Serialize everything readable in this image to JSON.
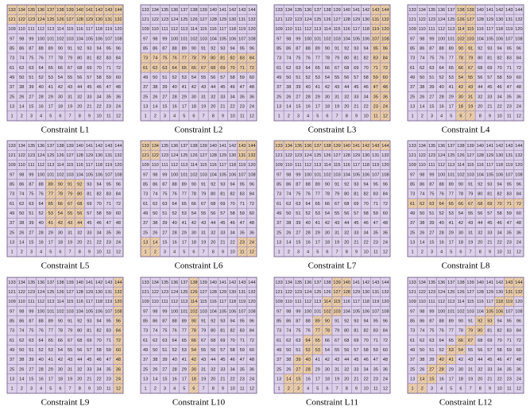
{
  "grid": [
    [
      133,
      134,
      135,
      136,
      137,
      138,
      139,
      140,
      141,
      142,
      143,
      144
    ],
    [
      121,
      122,
      123,
      124,
      125,
      126,
      127,
      128,
      129,
      130,
      131,
      132
    ],
    [
      109,
      110,
      111,
      112,
      113,
      114,
      115,
      116,
      117,
      118,
      119,
      120
    ],
    [
      97,
      98,
      99,
      100,
      101,
      102,
      103,
      104,
      105,
      106,
      107,
      108
    ],
    [
      85,
      86,
      87,
      88,
      89,
      90,
      91,
      92,
      93,
      94,
      95,
      96
    ],
    [
      73,
      74,
      75,
      76,
      77,
      78,
      79,
      80,
      81,
      82,
      83,
      84
    ],
    [
      61,
      62,
      63,
      64,
      65,
      66,
      67,
      68,
      69,
      70,
      71,
      72
    ],
    [
      49,
      50,
      51,
      52,
      53,
      54,
      55,
      56,
      57,
      58,
      59,
      60
    ],
    [
      37,
      38,
      39,
      40,
      41,
      42,
      43,
      44,
      45,
      46,
      47,
      48
    ],
    [
      25,
      26,
      27,
      28,
      29,
      30,
      31,
      32,
      33,
      34,
      35,
      36
    ],
    [
      13,
      14,
      15,
      16,
      17,
      18,
      19,
      20,
      21,
      22,
      23,
      24
    ],
    [
      1,
      2,
      3,
      4,
      5,
      6,
      7,
      8,
      9,
      10,
      11,
      12
    ]
  ],
  "panels": [
    {
      "caption": "Constraint L1",
      "highlight": [
        121,
        122,
        123,
        124,
        125,
        126,
        127,
        128,
        129,
        130,
        131,
        132,
        133,
        134,
        135,
        136,
        137,
        138,
        139,
        140,
        141,
        142,
        143,
        144
      ]
    },
    {
      "caption": "Constraint L2",
      "highlight": [
        61,
        62,
        63,
        64,
        65,
        66,
        67,
        68,
        69,
        70,
        71,
        72,
        73,
        74,
        75,
        76,
        77,
        78,
        79,
        80,
        81,
        82,
        83,
        84
      ]
    },
    {
      "caption": "Constraint L3",
      "highlight": [
        11,
        12,
        23,
        24,
        35,
        36,
        47,
        48,
        59,
        60,
        71,
        72,
        83,
        84,
        95,
        96,
        107,
        108,
        119,
        120,
        131,
        132,
        143,
        144
      ]
    },
    {
      "caption": "Constraint L4",
      "highlight": [
        6,
        7,
        18,
        19,
        30,
        31,
        42,
        43,
        54,
        55,
        66,
        67,
        78,
        79,
        90,
        91,
        102,
        103,
        114,
        115,
        126,
        127,
        138,
        139
      ]
    },
    {
      "caption": "Constraint L5",
      "highlight": [
        89,
        90,
        91,
        92,
        77,
        78,
        79,
        80,
        65,
        66,
        67,
        68,
        53,
        54,
        55,
        56,
        41,
        42,
        43,
        44
      ]
    },
    {
      "caption": "Constraint L6",
      "highlight": [
        133,
        134,
        121,
        122,
        143,
        144,
        131,
        132,
        13,
        14,
        1,
        2,
        23,
        24,
        11,
        12
      ]
    },
    {
      "caption": "Constraint L7",
      "highlight": [
        133,
        134,
        135,
        136,
        137,
        138,
        139,
        140,
        141,
        142,
        143,
        144
      ]
    },
    {
      "caption": "Constraint L8",
      "highlight": [
        61,
        62,
        63,
        64,
        65,
        66,
        67,
        68,
        69,
        70,
        71,
        72
      ]
    },
    {
      "caption": "Constraint L9",
      "highlight": [
        12,
        24,
        36,
        48,
        60,
        72,
        84,
        96,
        108,
        120,
        132,
        144
      ]
    },
    {
      "caption": "Constraint L10",
      "highlight": [
        6,
        18,
        30,
        42,
        54,
        66,
        78,
        90,
        102,
        114,
        126,
        138
      ]
    },
    {
      "caption": "Constraint L11",
      "highlight": [
        139,
        140,
        127,
        128,
        114,
        115,
        102,
        103,
        89,
        90,
        77,
        78,
        64,
        65,
        52,
        53,
        39,
        40,
        27,
        28,
        14,
        15,
        2,
        3
      ]
    },
    {
      "caption": "Constraint L12",
      "highlight": [
        1,
        2,
        14,
        15,
        27,
        28,
        40,
        41,
        53,
        54,
        66,
        67,
        79,
        80,
        92,
        93,
        105,
        106,
        118,
        119,
        131,
        132,
        143,
        144
      ]
    }
  ]
}
